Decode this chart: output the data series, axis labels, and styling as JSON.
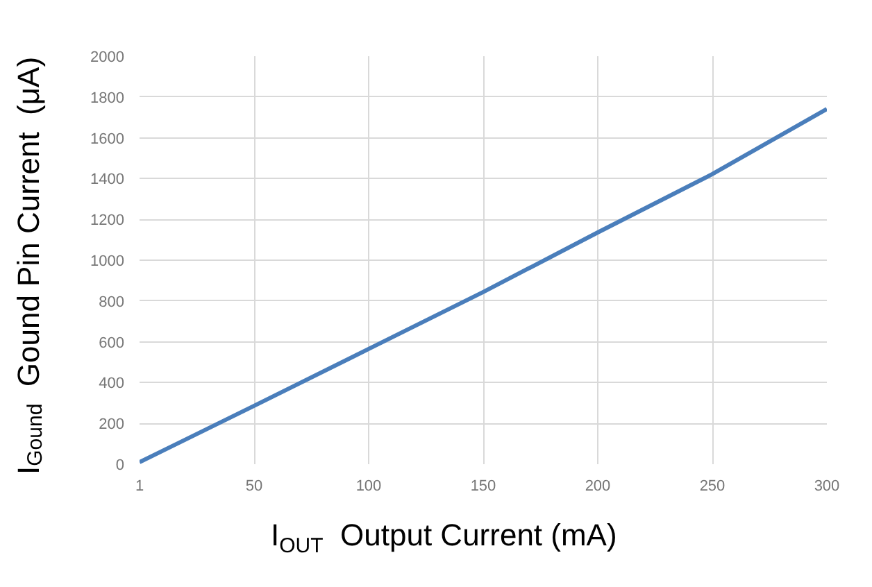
{
  "chart_data": {
    "type": "line",
    "xlabel": "I$_{OUT}$  Output Current (mA)",
    "ylabel": "I$_{Gound}$  Gound Pin Current  (μA)",
    "categories": [
      "1",
      "50",
      "100",
      "150",
      "200",
      "250",
      "300"
    ],
    "series": [
      {
        "color": "#4a7ebb",
        "values": [
          10,
          286,
          565,
          844,
          1136,
          1422,
          1741
        ]
      }
    ],
    "ylim": [
      0,
      2000
    ],
    "yticks": [
      0,
      200,
      400,
      600,
      800,
      1000,
      1200,
      1400,
      1600,
      1800,
      2000
    ],
    "grid": true,
    "marker": "none",
    "line_style": "solid"
  }
}
